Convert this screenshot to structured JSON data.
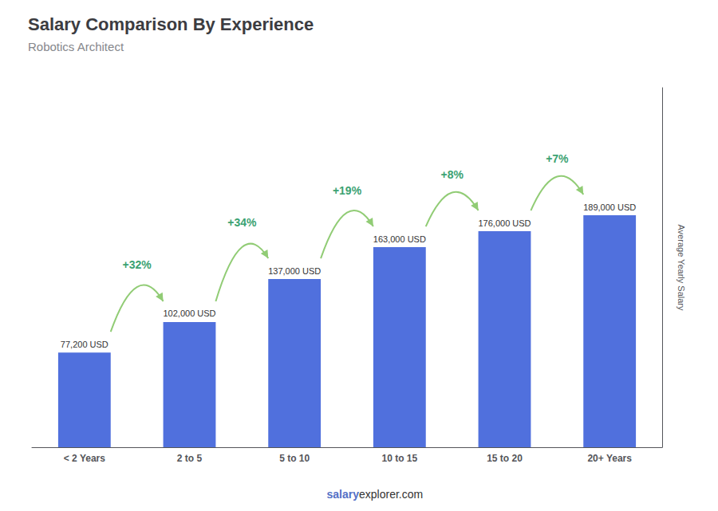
{
  "chart_data": {
    "type": "bar",
    "title": "Salary Comparison By Experience",
    "subtitle": "Robotics Architect",
    "ylabel": "Average Yearly Salary",
    "categories": [
      "< 2 Years",
      "2 to 5",
      "5 to 10",
      "10 to 15",
      "15 to 20",
      "20+ Years"
    ],
    "values": [
      77200,
      102000,
      137000,
      163000,
      176000,
      189000
    ],
    "value_labels": [
      "77,200 USD",
      "102,000 USD",
      "137,000 USD",
      "163,000 USD",
      "176,000 USD",
      "189,000 USD"
    ],
    "data_labels": true,
    "annotations": [
      "+32%",
      "+34%",
      "+19%",
      "+8%",
      "+7%"
    ],
    "watermark": [
      "salary",
      "explorer.com"
    ],
    "ylim": [
      0,
      292950
    ],
    "tick_labels": "x",
    "grid": false
  }
}
